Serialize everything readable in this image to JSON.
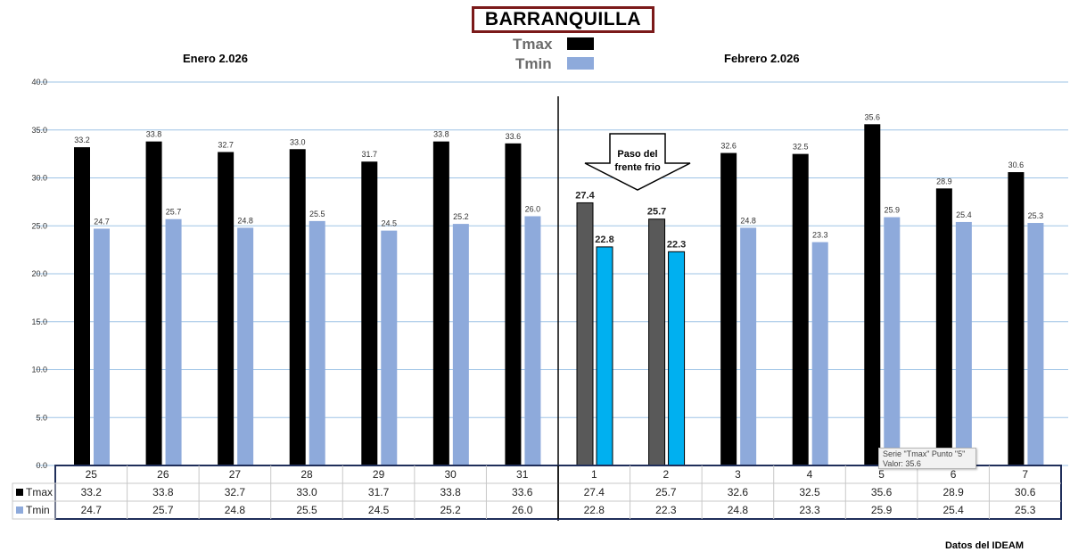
{
  "title": "BARRANQUILLA",
  "months": {
    "left": "Enero 2.026",
    "right": "Febrero 2.026"
  },
  "annotation": {
    "line1": "Paso del",
    "line2": "frente frio"
  },
  "source": "Datos del IDEAM",
  "tooltip": {
    "line1": "Serie \"Tmax\" Punto \"5\"",
    "line2": "Valor: 35.6"
  },
  "colors": {
    "tmax": "#000000",
    "tmin": "#8eaadb",
    "tmax_highlight": "#595959",
    "tmin_highlight": "#00b0f0",
    "title_border": "#7b1a1a",
    "gridline": "#9dc3e6",
    "table_border": "#1f2e5a"
  },
  "chart_data": {
    "type": "bar",
    "title": "BARRANQUILLA",
    "categories": [
      "25",
      "26",
      "27",
      "28",
      "29",
      "30",
      "31",
      "1",
      "2",
      "3",
      "4",
      "5",
      "6",
      "7"
    ],
    "series": [
      {
        "name": "Tmax",
        "values": [
          33.2,
          33.8,
          32.7,
          33.0,
          31.7,
          33.8,
          33.6,
          27.4,
          25.7,
          32.6,
          32.5,
          35.6,
          28.9,
          30.6
        ]
      },
      {
        "name": "Tmin",
        "values": [
          24.7,
          25.7,
          24.8,
          25.5,
          24.5,
          25.2,
          26.0,
          22.8,
          22.3,
          24.8,
          23.3,
          25.9,
          25.4,
          25.3
        ]
      }
    ],
    "highlighted_categories": [
      "1",
      "2"
    ],
    "ylim": [
      0,
      40
    ],
    "yticks": [
      "0.0",
      "5.0",
      "10.0",
      "15.0",
      "20.0",
      "25.0",
      "30.0",
      "35.0",
      "40.0"
    ],
    "grid": true,
    "legend": "top-center",
    "data_table": true
  }
}
